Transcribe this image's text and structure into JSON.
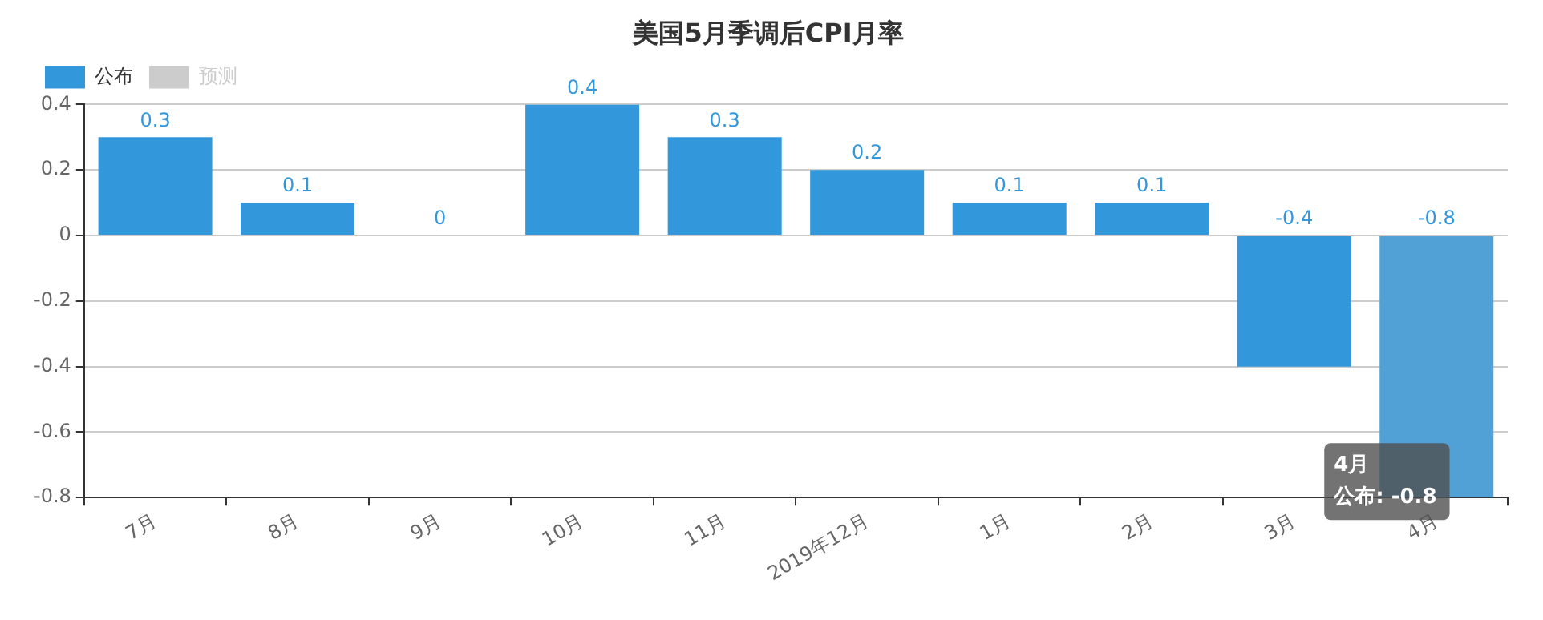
{
  "chart_data": {
    "type": "bar",
    "title": "美国5月季调后CPI月率",
    "categories": [
      "7月",
      "8月",
      "9月",
      "10月",
      "11月",
      "2019年12月",
      "1月",
      "2月",
      "3月",
      "4月"
    ],
    "series": [
      {
        "name": "公布",
        "color": "#3398db",
        "colors": [
          "#3398db",
          "#3398db",
          "#3398db",
          "#3398db",
          "#3398db",
          "#3398db",
          "#3398db",
          "#3398db",
          "#3398db",
          "#52a1d6"
        ],
        "values": [
          0.3,
          0.1,
          0,
          0.4,
          0.3,
          0.2,
          0.1,
          0.1,
          -0.4,
          -0.8
        ]
      },
      {
        "name": "预测",
        "color": "#cccccc",
        "values": [
          null,
          null,
          null,
          null,
          null,
          null,
          null,
          null,
          null,
          null
        ]
      }
    ],
    "ylim": [
      -0.8,
      0.4
    ],
    "yticks": [
      -0.8,
      -0.6,
      -0.4,
      -0.2,
      0,
      0.2,
      0.4
    ],
    "grid": "y",
    "legend": "top left",
    "data_labels": true,
    "annotations": [
      "4月",
      "公布: -0.8"
    ]
  }
}
